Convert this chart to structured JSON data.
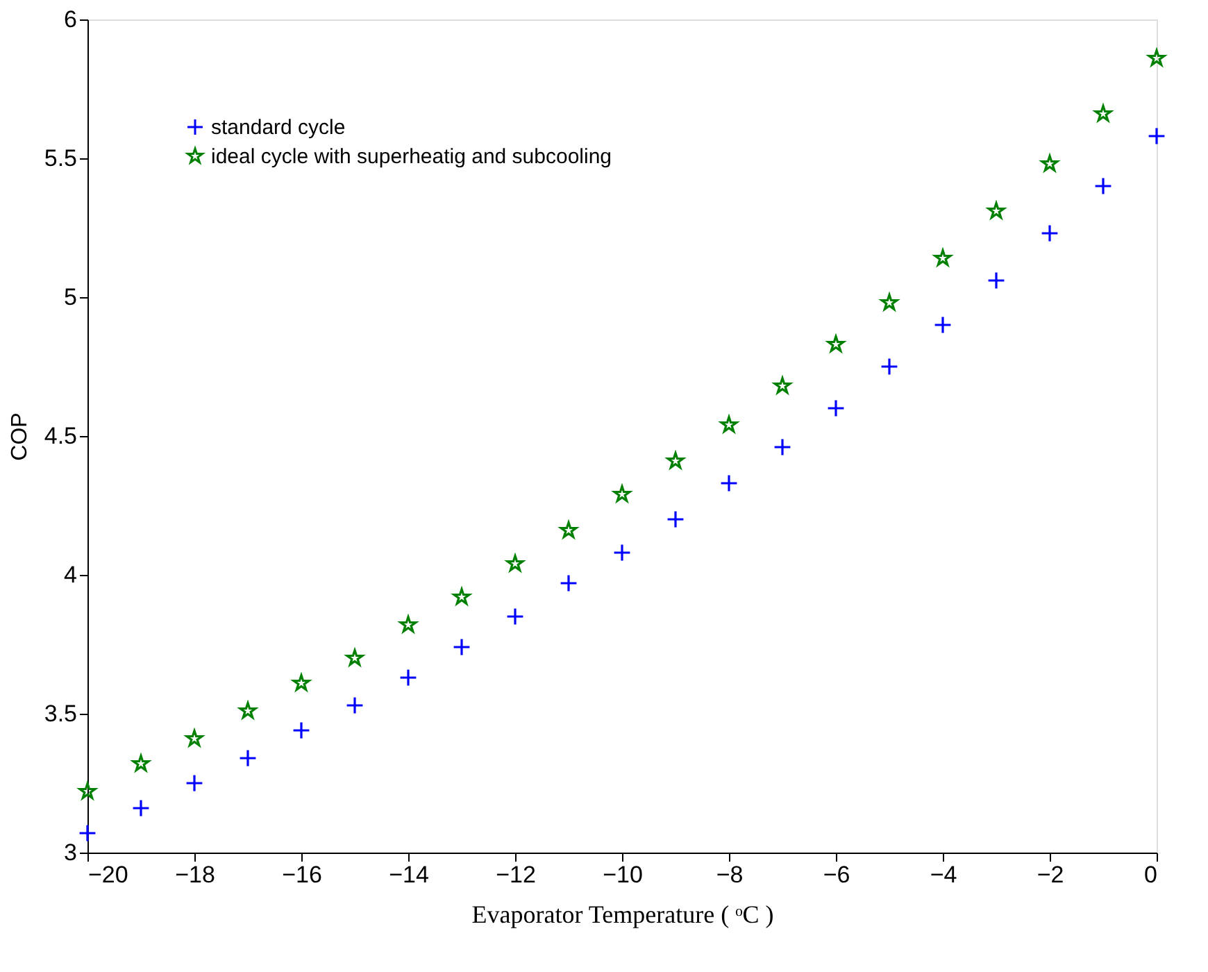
{
  "chart_data": {
    "type": "scatter",
    "xlabel": "Evaporator Temperature ( ᵒC )",
    "ylabel": "COP",
    "x": [
      -20,
      -19,
      -18,
      -17,
      -16,
      -15,
      -14,
      -13,
      -12,
      -11,
      -10,
      -9,
      -8,
      -7,
      -6,
      -5,
      -4,
      -3,
      -2,
      -1,
      0
    ],
    "series": [
      {
        "name": "standard cycle",
        "color": "#0000ff",
        "marker": "cross",
        "values": [
          3.07,
          3.16,
          3.25,
          3.34,
          3.44,
          3.53,
          3.63,
          3.74,
          3.85,
          3.97,
          4.08,
          4.2,
          4.33,
          4.46,
          4.6,
          4.75,
          4.9,
          5.06,
          5.23,
          5.4,
          5.58
        ]
      },
      {
        "name": "ideal cycle with superheatig and subcooling",
        "color": "#008000",
        "marker": "star",
        "values": [
          3.22,
          3.32,
          3.41,
          3.51,
          3.61,
          3.7,
          3.82,
          3.92,
          4.04,
          4.16,
          4.29,
          4.41,
          4.54,
          4.68,
          4.83,
          4.98,
          5.14,
          5.31,
          5.48,
          5.66,
          5.86
        ]
      }
    ],
    "xlim": [
      -20,
      0
    ],
    "xticks": [
      -20,
      -18,
      -16,
      -14,
      -12,
      -10,
      -8,
      -6,
      -4,
      -2,
      0
    ],
    "ylim": [
      3,
      6
    ],
    "yticks": [
      3,
      3.5,
      4,
      4.5,
      5,
      5.5,
      6
    ],
    "grid": false,
    "legend": "top left"
  }
}
